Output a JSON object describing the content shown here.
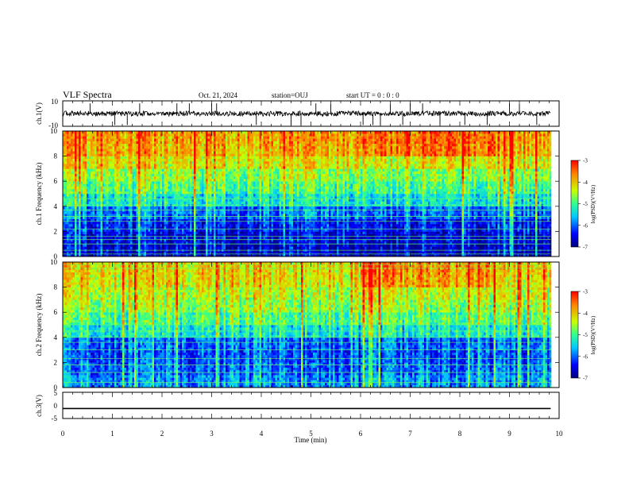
{
  "header": {
    "title": "VLF Spectra",
    "date": "Oct. 21, 2024",
    "station": "station=OUJ",
    "start_ut": "start UT =  0 : 0 : 0"
  },
  "chart_data": [
    {
      "type": "line",
      "panel": "ch1-waveform",
      "ylabel": "ch.1(V)",
      "ylim": [
        -10,
        10
      ],
      "yticks": [
        "10",
        "-10"
      ],
      "xlim": [
        0,
        10
      ],
      "baseline": 0,
      "noise_amplitude": 2,
      "spikes_x": [
        0.55,
        1.05,
        1.3,
        1.55,
        2.3,
        2.55,
        3.0,
        3.1,
        3.9,
        4.6,
        4.8,
        5.1,
        5.4,
        6.05,
        6.25,
        6.4,
        6.6,
        6.85,
        7.0,
        7.25,
        7.6,
        8.1,
        8.55,
        9.0,
        9.2,
        9.55
      ]
    },
    {
      "type": "heatmap",
      "panel": "ch1-spectrogram",
      "ylabel": "ch.1 Frequency (kHz)",
      "ylim": [
        0,
        10
      ],
      "yticks": [
        "0",
        "2",
        "4",
        "6",
        "8",
        "10"
      ],
      "xlim": [
        0,
        10
      ],
      "data_xmax": 9.83,
      "colorbar": {
        "label": "log(PSD)(V²/Hz)",
        "range": [
          -7,
          -3
        ],
        "ticks": [
          "-3",
          "-4",
          "-5",
          "-6",
          "-7"
        ],
        "colormap": "jet"
      },
      "typical_log_psd_by_freq": [
        {
          "freq_khz": 0.5,
          "value": -6.6
        },
        {
          "freq_khz": 1.5,
          "value": -6.5
        },
        {
          "freq_khz": 2.5,
          "value": -6.3
        },
        {
          "freq_khz": 3.5,
          "value": -5.9
        },
        {
          "freq_khz": 4.5,
          "value": -5.3
        },
        {
          "freq_khz": 5.5,
          "value": -4.9
        },
        {
          "freq_khz": 6.5,
          "value": -4.6
        },
        {
          "freq_khz": 7.5,
          "value": -4.2
        },
        {
          "freq_khz": 8.5,
          "value": -3.9
        },
        {
          "freq_khz": 9.5,
          "value": -3.8
        }
      ],
      "line_bands_khz": [
        0.2,
        0.5,
        1.0,
        1.35,
        1.6,
        2.2,
        2.8,
        3.2,
        3.7,
        4.1,
        4.6
      ],
      "enhanced_interval_min": [
        6.0,
        8.7
      ]
    },
    {
      "type": "heatmap",
      "panel": "ch2-spectrogram",
      "ylabel": "ch.2 Frequency (kHz)",
      "ylim": [
        0,
        10
      ],
      "yticks": [
        "0",
        "2",
        "4",
        "6",
        "8",
        "10"
      ],
      "xlim": [
        0,
        10
      ],
      "data_xmax": 9.83,
      "colorbar": {
        "label": "log(PSD)(V²/Hz)",
        "range": [
          -7,
          -3
        ],
        "ticks": [
          "-3",
          "-4",
          "-5",
          "-6",
          "-7"
        ],
        "colormap": "jet"
      },
      "typical_log_psd_by_freq": [
        {
          "freq_khz": 0.5,
          "value": -5.8
        },
        {
          "freq_khz": 1.5,
          "value": -6.0
        },
        {
          "freq_khz": 2.5,
          "value": -6.1
        },
        {
          "freq_khz": 3.5,
          "value": -6.0
        },
        {
          "freq_khz": 4.5,
          "value": -5.3
        },
        {
          "freq_khz": 5.5,
          "value": -4.9
        },
        {
          "freq_khz": 6.5,
          "value": -4.6
        },
        {
          "freq_khz": 7.5,
          "value": -4.4
        },
        {
          "freq_khz": 8.5,
          "value": -4.2
        },
        {
          "freq_khz": 9.5,
          "value": -4.1
        }
      ],
      "line_bands_khz": [
        0.4,
        1.2,
        1.8,
        2.3,
        3.0,
        3.6,
        4.0,
        4.5,
        5.0,
        9.5,
        9.8
      ],
      "enhanced_interval_min": [
        6.0,
        8.7
      ]
    },
    {
      "type": "line",
      "panel": "ch3-waveform",
      "ylabel": "ch.3(V)",
      "ylim": [
        -5,
        5
      ],
      "yticks": [
        "5",
        "0",
        "-5"
      ],
      "xlim": [
        0,
        10
      ],
      "xlabel": "Time (min)",
      "xticks": [
        "0",
        "1",
        "2",
        "3",
        "4",
        "5",
        "6",
        "7",
        "8",
        "9",
        "10"
      ],
      "constant_value": -1.2
    }
  ]
}
